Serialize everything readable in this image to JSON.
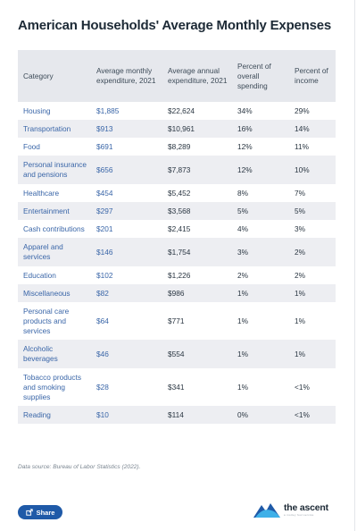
{
  "title": "American Households' Average Monthly Expenses",
  "table": {
    "headers": [
      "Category",
      "Average monthly expenditure, 2021",
      "Average annual expenditure, 2021",
      "Percent of overall spending",
      "Percent of income"
    ],
    "rows": [
      [
        "Housing",
        "$1,885",
        "$22,624",
        "34%",
        "29%"
      ],
      [
        "Transportation",
        "$913",
        "$10,961",
        "16%",
        "14%"
      ],
      [
        "Food",
        "$691",
        "$8,289",
        "12%",
        "11%"
      ],
      [
        "Personal insurance and pensions",
        "$656",
        "$7,873",
        "12%",
        "10%"
      ],
      [
        "Healthcare",
        "$454",
        "$5,452",
        "8%",
        "7%"
      ],
      [
        "Entertainment",
        "$297",
        "$3,568",
        "5%",
        "5%"
      ],
      [
        "Cash contributions",
        "$201",
        "$2,415",
        "4%",
        "3%"
      ],
      [
        "Apparel and services",
        "$146",
        "$1,754",
        "3%",
        "2%"
      ],
      [
        "Education",
        "$102",
        "$1,226",
        "2%",
        "2%"
      ],
      [
        "Miscellaneous",
        "$82",
        "$986",
        "1%",
        "1%"
      ],
      [
        "Personal care products and services",
        "$64",
        "$771",
        "1%",
        "1%"
      ],
      [
        "Alcoholic beverages",
        "$46",
        "$554",
        "1%",
        "1%"
      ],
      [
        "Tobacco products and smoking supplies",
        "$28",
        "$341",
        "1%",
        "<1%"
      ],
      [
        "Reading",
        "$10",
        "$114",
        "0%",
        "<1%"
      ]
    ]
  },
  "source": "Data source: Bureau of Labor Statistics (2022).",
  "share_label": "Share",
  "share_icon": "share-icon",
  "brand": {
    "name": "the ascent",
    "tagline": "a motley fool service",
    "logo_icon": "ascent-mountain-logo",
    "colors": {
      "accent": "#1f5aa8",
      "logo_light": "#3fb0e8"
    }
  }
}
